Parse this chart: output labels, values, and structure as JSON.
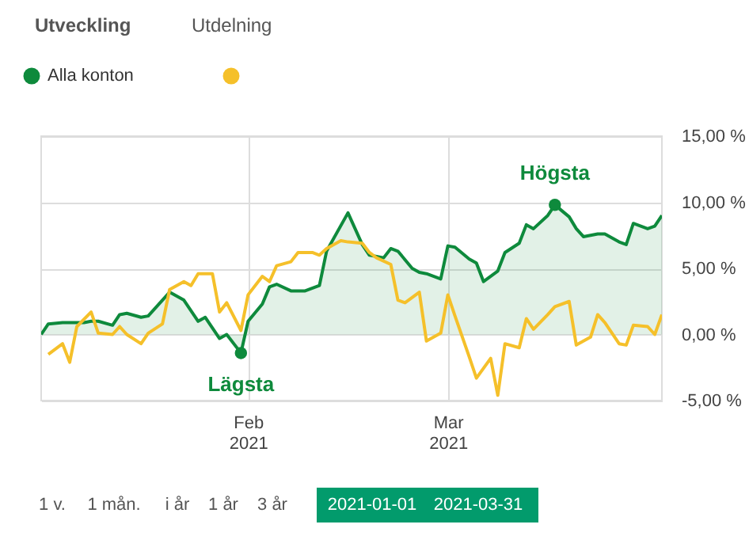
{
  "chart_data": {
    "type": "line",
    "annotations": [
      "Utveckling",
      "Utdelning",
      "1 v.",
      "1 mån.",
      "i år",
      "1 år",
      "3 år",
      "2021-01-01",
      "2021-03-31",
      {
        "text": "Lägsta",
        "x": "2021-01-31",
        "y": -1.4
      },
      {
        "text": "Högsta",
        "x": "2021-03-16",
        "y": 9.8
      }
    ],
    "series": [
      {
        "name": "Alla konton",
        "color": "#0e8a3c",
        "type": "area",
        "x": [
          "2021-01-03",
          "2021-01-04",
          "2021-01-06",
          "2021-01-09",
          "2021-01-10",
          "2021-01-11",
          "2021-01-13",
          "2021-01-14",
          "2021-01-15",
          "2021-01-17",
          "2021-01-18",
          "2021-01-21",
          "2021-01-23",
          "2021-01-25",
          "2021-01-26",
          "2021-01-28",
          "2021-01-29",
          "2021-01-31",
          "2021-02-01",
          "2021-02-03",
          "2021-02-04",
          "2021-02-05",
          "2021-02-07",
          "2021-02-09",
          "2021-02-11",
          "2021-02-12",
          "2021-02-15",
          "2021-02-17",
          "2021-02-18",
          "2021-02-20",
          "2021-02-21",
          "2021-02-22",
          "2021-02-24",
          "2021-02-25",
          "2021-02-26",
          "2021-02-28",
          "2021-03-01",
          "2021-03-02",
          "2021-03-04",
          "2021-03-05",
          "2021-03-06",
          "2021-03-08",
          "2021-03-09",
          "2021-03-11",
          "2021-03-12",
          "2021-03-13",
          "2021-03-15",
          "2021-03-16",
          "2021-03-18",
          "2021-03-19",
          "2021-03-20",
          "2021-03-22",
          "2021-03-23",
          "2021-03-25",
          "2021-03-26",
          "2021-03-27",
          "2021-03-29",
          "2021-03-30",
          "2021-03-31"
        ],
        "values": [
          0.0,
          0.8,
          0.9,
          0.9,
          1.0,
          1.0,
          0.7,
          1.5,
          1.6,
          1.3,
          1.4,
          3.2,
          2.6,
          1.0,
          1.3,
          -0.3,
          0.0,
          -1.4,
          1.0,
          2.3,
          3.6,
          3.8,
          3.3,
          3.3,
          3.7,
          6.3,
          9.2,
          6.8,
          6.0,
          5.8,
          6.5,
          6.3,
          5.0,
          4.7,
          4.6,
          4.2,
          6.7,
          6.6,
          5.7,
          5.4,
          4.0,
          4.8,
          6.2,
          6.9,
          8.3,
          8.0,
          9.0,
          9.8,
          8.9,
          8.0,
          7.4,
          7.6,
          7.6,
          7.0,
          6.8,
          8.4,
          8.0,
          8.2,
          9.0
        ]
      },
      {
        "color": "#f5c02a",
        "type": "line",
        "x": [
          "2021-01-04",
          "2021-01-06",
          "2021-01-07",
          "2021-01-08",
          "2021-01-10",
          "2021-01-11",
          "2021-01-13",
          "2021-01-14",
          "2021-01-15",
          "2021-01-17",
          "2021-01-18",
          "2021-01-20",
          "2021-01-21",
          "2021-01-23",
          "2021-01-24",
          "2021-01-25",
          "2021-01-27",
          "2021-01-28",
          "2021-01-29",
          "2021-01-31",
          "2021-02-01",
          "2021-02-03",
          "2021-02-04",
          "2021-02-05",
          "2021-02-07",
          "2021-02-08",
          "2021-02-10",
          "2021-02-11",
          "2021-02-12",
          "2021-02-14",
          "2021-02-15",
          "2021-02-17",
          "2021-02-18",
          "2021-02-19",
          "2021-02-21",
          "2021-02-22",
          "2021-02-23",
          "2021-02-25",
          "2021-02-26",
          "2021-02-28",
          "2021-03-01",
          "2021-03-02",
          "2021-03-04",
          "2021-03-05",
          "2021-03-07",
          "2021-03-08",
          "2021-03-09",
          "2021-03-11",
          "2021-03-12",
          "2021-03-13",
          "2021-03-15",
          "2021-03-16",
          "2021-03-18",
          "2021-03-19",
          "2021-03-21",
          "2021-03-22",
          "2021-03-23",
          "2021-03-25",
          "2021-03-26",
          "2021-03-27",
          "2021-03-29",
          "2021-03-30",
          "2021-03-31"
        ],
        "values": [
          -1.5,
          -0.7,
          -2.1,
          0.6,
          1.7,
          0.1,
          0.0,
          0.6,
          0.0,
          -0.7,
          0.1,
          0.8,
          3.4,
          4.0,
          3.7,
          4.6,
          4.6,
          1.7,
          2.4,
          0.3,
          3.0,
          4.4,
          4.0,
          5.2,
          5.5,
          6.2,
          6.2,
          6.0,
          6.5,
          7.1,
          7.0,
          6.9,
          6.2,
          5.8,
          5.3,
          2.6,
          2.4,
          3.2,
          -0.5,
          0.1,
          3.0,
          1.4,
          -1.7,
          -3.3,
          -1.8,
          -4.6,
          -0.7,
          -1.0,
          1.2,
          0.4,
          1.5,
          2.1,
          2.5,
          -0.8,
          -0.2,
          1.5,
          0.9,
          -0.7,
          -0.8,
          0.7,
          0.6,
          0.0,
          1.5
        ]
      }
    ],
    "xlim": [
      "2021-01-03",
      "2021-03-31"
    ],
    "xticks": [
      {
        "value": "2021-02-01",
        "label": "Feb 2021"
      },
      {
        "value": "2021-03-01",
        "label": "Mar 2021"
      }
    ],
    "ylim": [
      -5,
      15
    ],
    "yticks": [
      {
        "value": -5,
        "label": "-5,00 %"
      },
      {
        "value": 0,
        "label": "0,00 %"
      },
      {
        "value": 5,
        "label": "5,00 %"
      },
      {
        "value": 10,
        "label": "10,00 %"
      },
      {
        "value": 15,
        "label": "15,00 %"
      }
    ],
    "grid": true,
    "legend": "top left",
    "marker": "none",
    "line_style": "solid"
  }
}
